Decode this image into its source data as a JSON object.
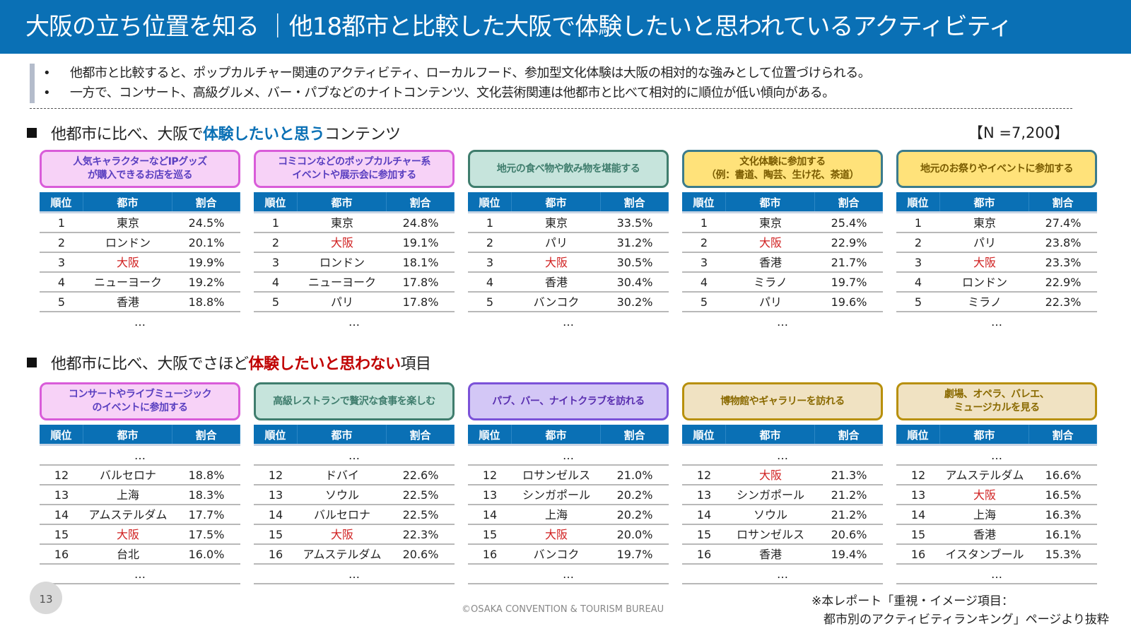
{
  "header": {
    "title": "大阪の立ち位置を知る ｜他18都市と比較した大阪で体験したいと思われているアクティビティ"
  },
  "bullets": [
    "他都市と比較すると、ポップカルチャー関連のアクティビティ、ローカルフード、参加型文化体験は大阪の相対的な強みとして位置づけられる。",
    "一方で、コンサート、高級グルメ、バー・パブなどのナイトコンテンツ、文化芸術関連は他都市と比べて相対的に順位が低い傾向がある。"
  ],
  "bullet_symbol": "•",
  "section1": {
    "pre": "他都市に比べ、大阪で",
    "emph": "体験したいと思う",
    "post": "コンテンツ",
    "sample": "【N =7,200】"
  },
  "section2": {
    "pre": "他都市に比べ、大阪でさほど",
    "emph": "体験したいと思わない",
    "post": "項目"
  },
  "columns": {
    "rank": "順位",
    "city": "都市",
    "ratio": "割合"
  },
  "ellipsis": "…",
  "highlight_city": "大阪",
  "colors": {
    "header": "#0a70b5",
    "highlight": "#d02020",
    "emph_blue": "#0a70b5",
    "emph_red": "#c00000"
  },
  "top_tables": [
    {
      "title": "人気キャラクターなどIPグッズ\nが購入できるお店を巡る",
      "theme": "pink",
      "rows": [
        [
          "1",
          "東京",
          "24.5%"
        ],
        [
          "2",
          "ロンドン",
          "20.1%"
        ],
        [
          "3",
          "大阪",
          "19.9%"
        ],
        [
          "4",
          "ニューヨーク",
          "19.2%"
        ],
        [
          "5",
          "香港",
          "18.8%"
        ]
      ]
    },
    {
      "title": "コミコンなどのポップカルチャー系\nイベントや展示会に参加する",
      "theme": "pink",
      "rows": [
        [
          "1",
          "東京",
          "24.8%"
        ],
        [
          "2",
          "大阪",
          "19.1%"
        ],
        [
          "3",
          "ロンドン",
          "18.1%"
        ],
        [
          "4",
          "ニューヨーク",
          "17.8%"
        ],
        [
          "5",
          "パリ",
          "17.8%"
        ]
      ]
    },
    {
      "title": "地元の食べ物や飲み物を堪能する",
      "theme": "teal",
      "rows": [
        [
          "1",
          "東京",
          "33.5%"
        ],
        [
          "2",
          "パリ",
          "31.2%"
        ],
        [
          "3",
          "大阪",
          "30.5%"
        ],
        [
          "4",
          "香港",
          "30.4%"
        ],
        [
          "5",
          "バンコク",
          "30.2%"
        ]
      ]
    },
    {
      "title": "文化体験に参加する\n（例：書道、陶芸、生け花、茶道）",
      "theme": "yellow",
      "rows": [
        [
          "1",
          "東京",
          "25.4%"
        ],
        [
          "2",
          "大阪",
          "22.9%"
        ],
        [
          "3",
          "香港",
          "21.7%"
        ],
        [
          "4",
          "ミラノ",
          "19.7%"
        ],
        [
          "5",
          "パリ",
          "19.6%"
        ]
      ]
    },
    {
      "title": "地元のお祭りやイベントに参加する",
      "theme": "yellow",
      "rows": [
        [
          "1",
          "東京",
          "27.4%"
        ],
        [
          "2",
          "パリ",
          "23.8%"
        ],
        [
          "3",
          "大阪",
          "23.3%"
        ],
        [
          "4",
          "ロンドン",
          "22.9%"
        ],
        [
          "5",
          "ミラノ",
          "22.3%"
        ]
      ]
    }
  ],
  "bottom_tables": [
    {
      "title": "コンサートやライブミュージック\nのイベントに参加する",
      "theme": "pink",
      "rows": [
        [
          "12",
          "バルセロナ",
          "18.8%"
        ],
        [
          "13",
          "上海",
          "18.3%"
        ],
        [
          "14",
          "アムステルダム",
          "17.7%"
        ],
        [
          "15",
          "大阪",
          "17.5%"
        ],
        [
          "16",
          "台北",
          "16.0%"
        ]
      ]
    },
    {
      "title": "高級レストランで贅沢な食事を楽しむ",
      "theme": "teal",
      "rows": [
        [
          "12",
          "ドバイ",
          "22.6%"
        ],
        [
          "13",
          "ソウル",
          "22.5%"
        ],
        [
          "14",
          "バルセロナ",
          "22.5%"
        ],
        [
          "15",
          "大阪",
          "22.3%"
        ],
        [
          "16",
          "アムステルダム",
          "20.6%"
        ]
      ]
    },
    {
      "title": "パブ、バー、ナイトクラブを訪れる",
      "theme": "purple",
      "rows": [
        [
          "12",
          "ロサンゼルス",
          "21.0%"
        ],
        [
          "13",
          "シンガポール",
          "20.2%"
        ],
        [
          "14",
          "上海",
          "20.2%"
        ],
        [
          "15",
          "大阪",
          "20.0%"
        ],
        [
          "16",
          "バンコク",
          "19.7%"
        ]
      ]
    },
    {
      "title": "博物館やギャラリーを訪れる",
      "theme": "tan",
      "rows": [
        [
          "12",
          "大阪",
          "21.3%"
        ],
        [
          "13",
          "シンガポール",
          "21.2%"
        ],
        [
          "14",
          "ソウル",
          "21.2%"
        ],
        [
          "15",
          "ロサンゼルス",
          "20.6%"
        ],
        [
          "16",
          "香港",
          "19.4%"
        ]
      ]
    },
    {
      "title": "劇場、オペラ、バレエ、\nミュージカルを見る",
      "theme": "tan",
      "rows": [
        [
          "12",
          "アムステルダム",
          "16.6%"
        ],
        [
          "13",
          "大阪",
          "16.5%"
        ],
        [
          "14",
          "上海",
          "16.3%"
        ],
        [
          "15",
          "香港",
          "16.1%"
        ],
        [
          "16",
          "イスタンブール",
          "15.3%"
        ]
      ]
    }
  ],
  "footer": {
    "page": "13",
    "copyright": "©OSAKA CONVENTION & TOURISM BUREAU",
    "note": [
      "※本レポート「重視・イメージ項目：",
      "　都市別のアクティビティランキング」ページより抜粋"
    ]
  }
}
